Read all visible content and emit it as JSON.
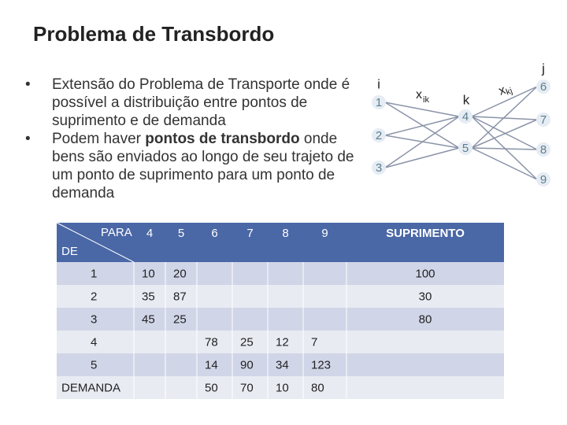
{
  "header": {
    "title": "Problema de Transbordo"
  },
  "bullets": [
    {
      "parts": [
        "Extensão do Problema de Transporte onde é possível a distribuição entre pontos de suprimento e de demanda"
      ]
    },
    {
      "parts": [
        "Podem haver ",
        "pontos de transbordo",
        " onde bens são enviados ao longo de seu trajeto de um ponto de suprimento para um ponto de demanda"
      ],
      "bold": [
        false,
        true,
        false
      ]
    }
  ],
  "diagram": {
    "labels": {
      "i": "i",
      "k": "k",
      "j": "j",
      "xik": "x",
      "xik_sub": "ik",
      "xkj": "x",
      "xkj_sub": "kj"
    },
    "sources": [
      "1",
      "2",
      "3"
    ],
    "transshipment": [
      "4",
      "5"
    ],
    "destinations": [
      "6",
      "7",
      "8",
      "9"
    ]
  },
  "table": {
    "corner_top": "PARA",
    "corner_bottom": "DE",
    "columns": [
      "4",
      "5",
      "6",
      "7",
      "8",
      "9",
      "SUPRIMENTO"
    ],
    "rows": [
      [
        "1",
        "10",
        "20",
        null,
        null,
        null,
        null,
        "100"
      ],
      [
        "2",
        "35",
        "87",
        null,
        null,
        null,
        null,
        "30"
      ],
      [
        "3",
        "45",
        "25",
        null,
        null,
        null,
        null,
        "80"
      ],
      [
        "4",
        null,
        null,
        "78",
        "25",
        "12",
        "7",
        null
      ],
      [
        "5",
        null,
        null,
        "14",
        "90",
        "34",
        "123",
        null
      ],
      [
        "DEMANDA",
        null,
        null,
        "50",
        "70",
        "10",
        "80",
        null
      ]
    ]
  }
}
